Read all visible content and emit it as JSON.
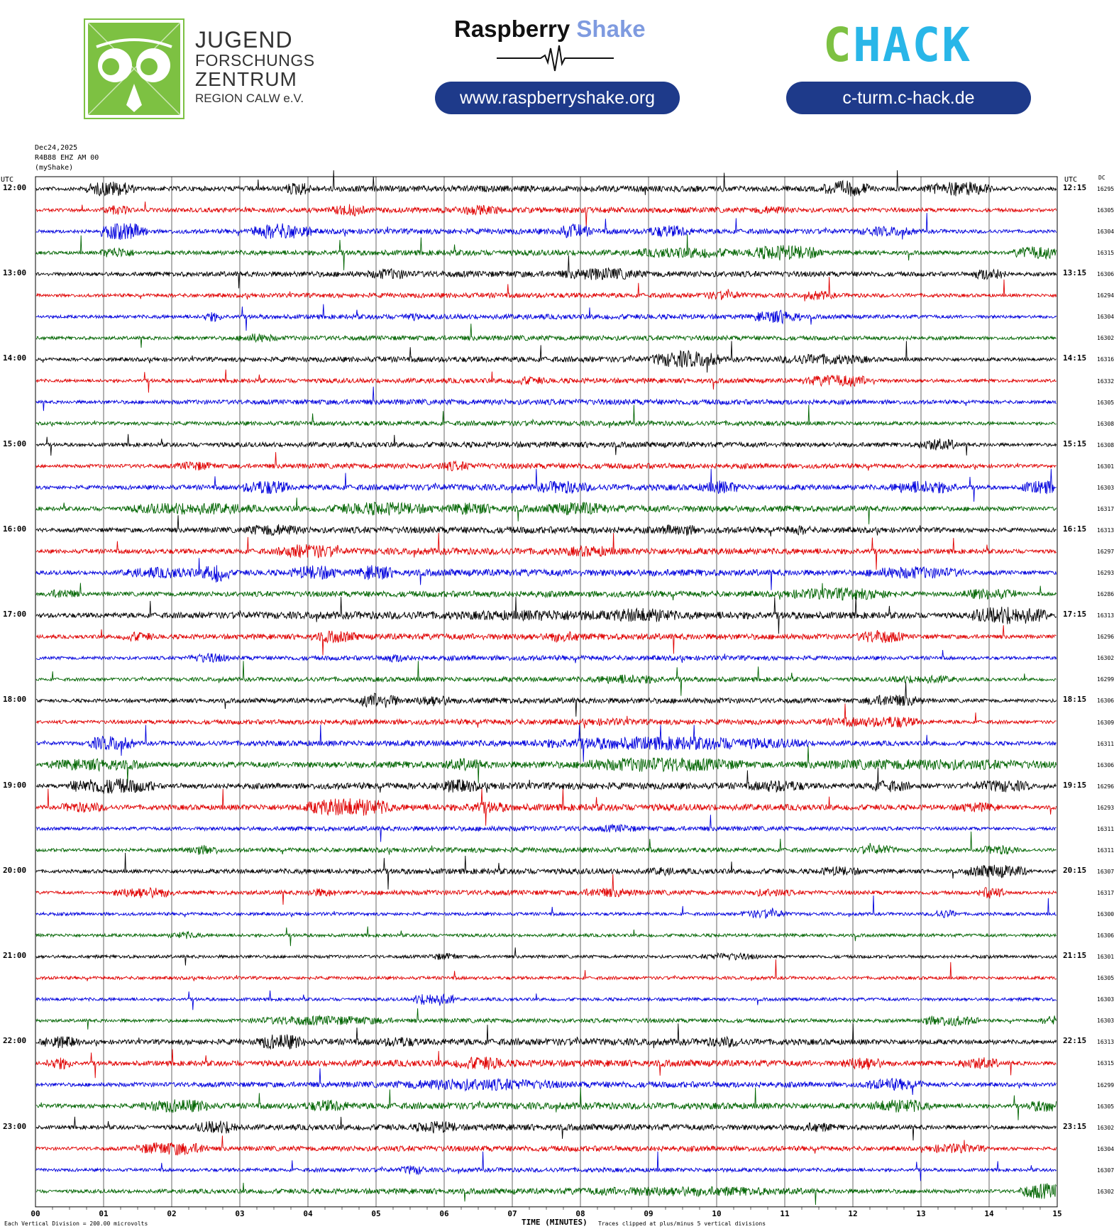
{
  "header": {
    "jfz_line1": "JUGEND",
    "jfz_line2": "FORSCHUNGS",
    "jfz_line3": "ZENTRUM",
    "jfz_line4": "REGION CALW e.V.",
    "rs_title_part1": "Raspberry",
    "rs_title_part2": "Shake",
    "rs_url": "www.raspberryshake.org",
    "chack_logo_text": "CHACK",
    "chack_url": "c-turm.c-hack.de",
    "colors": {
      "jfz_green": "#7dc142",
      "pill_blue": "#1e3a8a",
      "rs_accent": "#7f9be0",
      "chack_green": "#7dc142",
      "chack_cyan": "#29b6e8"
    }
  },
  "chart_data": {
    "type": "line",
    "kind": "helicorder",
    "date": "Dec24,2025",
    "station": "R4B88 EHZ AM 00",
    "source": "(myShake)",
    "utc_label_left": "UTC",
    "utc_label_right": "UTC",
    "dc_header": "DC",
    "xlabel": "TIME (MINUTES)",
    "x_ticks": [
      "00",
      "01",
      "02",
      "03",
      "04",
      "05",
      "06",
      "07",
      "08",
      "09",
      "10",
      "11",
      "12",
      "13",
      "14",
      "15"
    ],
    "xlim": [
      0,
      15
    ],
    "footer_left": "Each Vertical Division =  200.00 microvolts",
    "footer_right": "Traces clipped at plus/minus 5 vertical divisions",
    "trace_colors": [
      "#000000",
      "#e00000",
      "#0000dd",
      "#006400"
    ],
    "hour_labels_left": [
      "12:00",
      "13:00",
      "14:00",
      "15:00",
      "16:00",
      "17:00",
      "18:00",
      "19:00",
      "20:00",
      "21:00",
      "22:00",
      "23:00"
    ],
    "hour_labels_right": [
      "12:15",
      "13:15",
      "14:15",
      "15:15",
      "16:15",
      "17:15",
      "18:15",
      "19:15",
      "20:15",
      "21:15",
      "22:15",
      "23:15"
    ],
    "dc_offsets": [
      16295,
      16305,
      16304,
      16315,
      16306,
      16294,
      16304,
      16302,
      16316,
      16332,
      16305,
      16308,
      16308,
      16301,
      16303,
      16317,
      16313,
      16297,
      16293,
      16286,
      16313,
      16296,
      16302,
      16299,
      16306,
      16309,
      16311,
      16306,
      16296,
      16293,
      16311,
      16311,
      16307,
      16317,
      16300,
      16306,
      16301,
      16305,
      16303,
      16303,
      16313,
      16315,
      16299,
      16305,
      16302,
      16304,
      16307,
      16302
    ],
    "activity_events": [
      [
        [
          0.8,
          0.6,
          2.5
        ],
        [
          3.7,
          0.3,
          2.2
        ],
        [
          11.6,
          0.6,
          2.6
        ],
        [
          13.1,
          0.9,
          2.4
        ],
        [
          0.1,
          14.9,
          1.0
        ]
      ],
      [
        [
          1.0,
          0.4,
          1.5
        ],
        [
          4.4,
          0.4,
          2.0
        ],
        [
          6.1,
          0.8,
          1.6
        ],
        [
          10.5,
          0.6,
          1.4
        ],
        [
          0.1,
          14.9,
          0.9
        ]
      ],
      [
        [
          1.0,
          0.6,
          2.8
        ],
        [
          3.2,
          0.8,
          2.6
        ],
        [
          7.7,
          0.4,
          2.4
        ],
        [
          9.0,
          0.6,
          2.0
        ],
        [
          12.1,
          0.8,
          1.6
        ],
        [
          0.1,
          14.9,
          0.9
        ]
      ],
      [
        [
          1.0,
          0.4,
          1.8
        ],
        [
          8.8,
          1.5,
          1.8
        ],
        [
          10.5,
          1.0,
          2.5
        ],
        [
          14.4,
          0.6,
          2.2
        ],
        [
          0.1,
          14.9,
          0.9
        ]
      ],
      [
        [
          4.9,
          0.6,
          1.8
        ],
        [
          7.7,
          1.2,
          2.0
        ],
        [
          13.8,
          0.4,
          2.0
        ],
        [
          0.1,
          14.9,
          1.0
        ]
      ],
      [
        [
          9.8,
          0.6,
          1.4
        ],
        [
          11.3,
          0.4,
          1.5
        ],
        [
          0.1,
          14.9,
          0.8
        ]
      ],
      [
        [
          10.6,
          0.6,
          2.2
        ],
        [
          2.5,
          0.2,
          1.6
        ],
        [
          5.4,
          0.2,
          1.4
        ],
        [
          0.1,
          14.9,
          0.8
        ]
      ],
      [
        [
          3.0,
          0.5,
          1.5
        ],
        [
          0.1,
          14.9,
          0.8
        ]
      ],
      [
        [
          9.1,
          0.9,
          2.8
        ],
        [
          10.9,
          1.3,
          1.8
        ],
        [
          0.1,
          14.9,
          0.9
        ]
      ],
      [
        [
          7.0,
          0.5,
          1.4
        ],
        [
          11.3,
          1.0,
          2.0
        ],
        [
          0.1,
          14.9,
          0.8
        ]
      ],
      [
        [
          0.1,
          14.9,
          0.9
        ]
      ],
      [
        [
          0.1,
          14.9,
          0.8
        ]
      ],
      [
        [
          13.0,
          0.5,
          2.0
        ],
        [
          0.1,
          14.9,
          0.9
        ]
      ],
      [
        [
          2.1,
          0.5,
          1.6
        ],
        [
          5.9,
          0.5,
          1.6
        ],
        [
          0.1,
          14.9,
          0.9
        ]
      ],
      [
        [
          3.1,
          0.6,
          2.4
        ],
        [
          7.4,
          0.7,
          2.2
        ],
        [
          9.8,
          0.5,
          2.2
        ],
        [
          12.6,
          0.9,
          2.2
        ],
        [
          14.5,
          0.6,
          2.2
        ],
        [
          0.1,
          14.9,
          1.0
        ]
      ],
      [
        [
          1.4,
          1.8,
          2.0
        ],
        [
          4.4,
          1.4,
          2.2
        ],
        [
          6.1,
          0.6,
          2.0
        ],
        [
          7.5,
          0.9,
          2.2
        ],
        [
          0.1,
          14.9,
          1.1
        ]
      ],
      [
        [
          3.1,
          0.8,
          2.0
        ],
        [
          9.2,
          0.5,
          2.0
        ],
        [
          11.0,
          0.4,
          1.6
        ],
        [
          0.1,
          14.9,
          1.1
        ]
      ],
      [
        [
          3.6,
          0.8,
          2.4
        ],
        [
          7.7,
          0.9,
          1.8
        ],
        [
          0.1,
          14.9,
          1.1
        ]
      ],
      [
        [
          1.3,
          1.2,
          1.8
        ],
        [
          2.5,
          0.3,
          3.2
        ],
        [
          3.8,
          0.6,
          2.4
        ],
        [
          4.8,
          0.4,
          2.6
        ],
        [
          12.2,
          1.4,
          2.0
        ],
        [
          0.1,
          14.9,
          1.1
        ]
      ],
      [
        [
          0.2,
          0.4,
          1.6
        ],
        [
          11.0,
          1.6,
          2.0
        ],
        [
          13.6,
          0.8,
          1.8
        ],
        [
          0.1,
          14.9,
          1.0
        ]
      ],
      [
        [
          6.0,
          3.0,
          1.8
        ],
        [
          8.4,
          1.0,
          2.4
        ],
        [
          13.8,
          1.0,
          3.0
        ],
        [
          0.1,
          14.9,
          1.3
        ]
      ],
      [
        [
          1.3,
          0.4,
          1.6
        ],
        [
          4.1,
          0.6,
          2.0
        ],
        [
          7.5,
          0.5,
          1.8
        ],
        [
          12.1,
          0.6,
          2.2
        ],
        [
          0.1,
          14.9,
          1.0
        ]
      ],
      [
        [
          2.3,
          0.5,
          1.6
        ],
        [
          5.1,
          0.4,
          1.4
        ],
        [
          0.1,
          14.9,
          0.8
        ]
      ],
      [
        [
          8.2,
          1.0,
          1.6
        ],
        [
          12.5,
          1.0,
          1.4
        ],
        [
          0.1,
          14.9,
          0.8
        ]
      ],
      [
        [
          4.8,
          0.5,
          2.6
        ],
        [
          5.6,
          0.5,
          1.8
        ],
        [
          12.2,
          0.8,
          2.0
        ],
        [
          0.1,
          14.9,
          0.9
        ]
      ],
      [
        [
          11.5,
          1.5,
          1.6
        ],
        [
          12.3,
          0.6,
          2.0
        ],
        [
          7.8,
          1.2,
          1.2
        ],
        [
          0.1,
          14.9,
          0.9
        ]
      ],
      [
        [
          0.8,
          0.6,
          2.4
        ],
        [
          7.3,
          4.0,
          2.2
        ],
        [
          0.1,
          14.9,
          1.0
        ]
      ],
      [
        [
          0.2,
          1.4,
          2.0
        ],
        [
          6.0,
          0.6,
          2.0
        ],
        [
          8.0,
          2.4,
          2.4
        ],
        [
          11.0,
          4.0,
          1.8
        ],
        [
          0.1,
          14.9,
          1.1
        ]
      ],
      [
        [
          0.5,
          1.2,
          2.6
        ],
        [
          5.9,
          0.6,
          2.2
        ],
        [
          10.5,
          0.8,
          2.0
        ],
        [
          12.2,
          0.6,
          2.0
        ],
        [
          13.8,
          0.8,
          2.0
        ],
        [
          0.1,
          14.9,
          1.1
        ]
      ],
      [
        [
          0.4,
          0.6,
          1.8
        ],
        [
          4.0,
          1.2,
          3.0
        ],
        [
          6.3,
          0.6,
          2.0
        ],
        [
          13.5,
          0.6,
          1.6
        ],
        [
          0.1,
          14.9,
          1.1
        ]
      ],
      [
        [
          8.3,
          0.5,
          1.4
        ],
        [
          0.1,
          14.9,
          0.8
        ]
      ],
      [
        [
          2.2,
          0.5,
          1.6
        ],
        [
          12.1,
          0.5,
          1.6
        ],
        [
          13.9,
          0.5,
          1.6
        ],
        [
          0.1,
          14.9,
          0.8
        ]
      ],
      [
        [
          9.0,
          0.4,
          1.4
        ],
        [
          11.5,
          0.6,
          1.6
        ],
        [
          13.7,
          0.8,
          2.2
        ],
        [
          0.1,
          14.9,
          0.9
        ]
      ],
      [
        [
          1.2,
          0.8,
          1.8
        ],
        [
          4.0,
          0.4,
          1.4
        ],
        [
          8.0,
          0.8,
          1.6
        ],
        [
          10.5,
          0.6,
          1.4
        ],
        [
          13.9,
          0.3,
          2.0
        ],
        [
          0.1,
          14.9,
          0.8
        ]
      ],
      [
        [
          10.4,
          0.6,
          1.4
        ],
        [
          13.2,
          0.3,
          1.4
        ],
        [
          0.1,
          14.9,
          0.5
        ]
      ],
      [
        [
          2.0,
          0.4,
          1.2
        ],
        [
          0.1,
          14.9,
          0.5
        ]
      ],
      [
        [
          5.8,
          0.4,
          1.2
        ],
        [
          9.8,
          0.8,
          1.2
        ],
        [
          0.1,
          14.9,
          0.4
        ]
      ],
      [
        [
          0.1,
          14.9,
          0.4
        ]
      ],
      [
        [
          5.6,
          0.5,
          2.2
        ],
        [
          0.1,
          14.9,
          0.5
        ]
      ],
      [
        [
          0.1,
          14.9,
          0.7
        ],
        [
          3.2,
          2.0,
          1.6
        ],
        [
          13.0,
          0.8,
          1.8
        ],
        [
          14.8,
          0.3,
          1.6
        ]
      ],
      [
        [
          0.1,
          0.5,
          2.0
        ],
        [
          3.3,
          0.6,
          2.6
        ],
        [
          5.1,
          0.5,
          1.8
        ],
        [
          9.8,
          0.6,
          1.8
        ],
        [
          0.1,
          14.9,
          1.1
        ]
      ],
      [
        [
          0.2,
          0.3,
          2.0
        ],
        [
          6.2,
          0.7,
          2.2
        ],
        [
          11.9,
          0.5,
          2.2
        ],
        [
          13.6,
          0.5,
          2.0
        ],
        [
          0.1,
          14.9,
          1.1
        ]
      ],
      [
        [
          5.3,
          2.4,
          2.0
        ],
        [
          12.2,
          0.8,
          2.0
        ],
        [
          0.1,
          14.9,
          1.0
        ]
      ],
      [
        [
          1.6,
          1.0,
          2.2
        ],
        [
          4.0,
          0.6,
          2.0
        ],
        [
          12.3,
          0.8,
          2.2
        ],
        [
          14.6,
          0.5,
          2.0
        ],
        [
          0.1,
          14.9,
          1.1
        ]
      ],
      [
        [
          2.4,
          0.6,
          2.2
        ],
        [
          5.6,
          0.6,
          2.0
        ],
        [
          11.2,
          0.5,
          1.6
        ],
        [
          0.1,
          14.9,
          1.0
        ]
      ],
      [
        [
          1.5,
          1.0,
          2.2
        ],
        [
          13.1,
          0.8,
          1.6
        ],
        [
          0.1,
          14.9,
          0.9
        ]
      ],
      [
        [
          5.4,
          0.3,
          1.6
        ],
        [
          0.1,
          14.9,
          0.7
        ]
      ],
      [
        [
          7.6,
          3.8,
          1.6
        ],
        [
          14.5,
          0.6,
          2.6
        ],
        [
          0.1,
          14.9,
          0.9
        ]
      ]
    ]
  }
}
